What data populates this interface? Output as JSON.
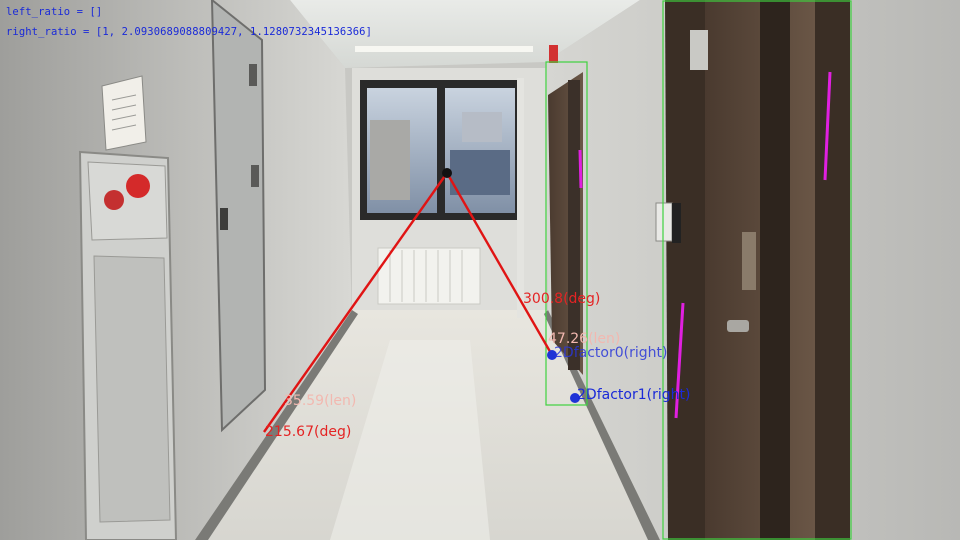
{
  "overlay": {
    "left_ratio_text": "left_ratio = []",
    "right_ratio_text": "right_ratio = [1, 2.0930689088809427, 1.1280732345136366]",
    "left_length_label": "35.59(len)",
    "left_angle_label": "215.67(deg)",
    "right_angle_label": "300.8(deg)",
    "right_length_label": "47.26(len)",
    "dfactor0_label": "2Dfactor0(right)",
    "dfactor1_label": "2Dfactor1(right)",
    "detections": [
      {
        "name": "door-box-near-right",
        "color": "#3fd23f"
      },
      {
        "name": "door-box-far-right",
        "color": "#3fd23f"
      }
    ]
  },
  "colors": {
    "vector_line": "#e01414",
    "vanishing_point": "#111111",
    "factor_point": "#1f33d6",
    "text_blue": "#1a2ad8",
    "label_red": "#e42424",
    "label_pink": "#f2b8b0",
    "label_blue": "#2a37d9",
    "magenta_mark": "#e020e0",
    "detection_box": "#3fd23f"
  }
}
